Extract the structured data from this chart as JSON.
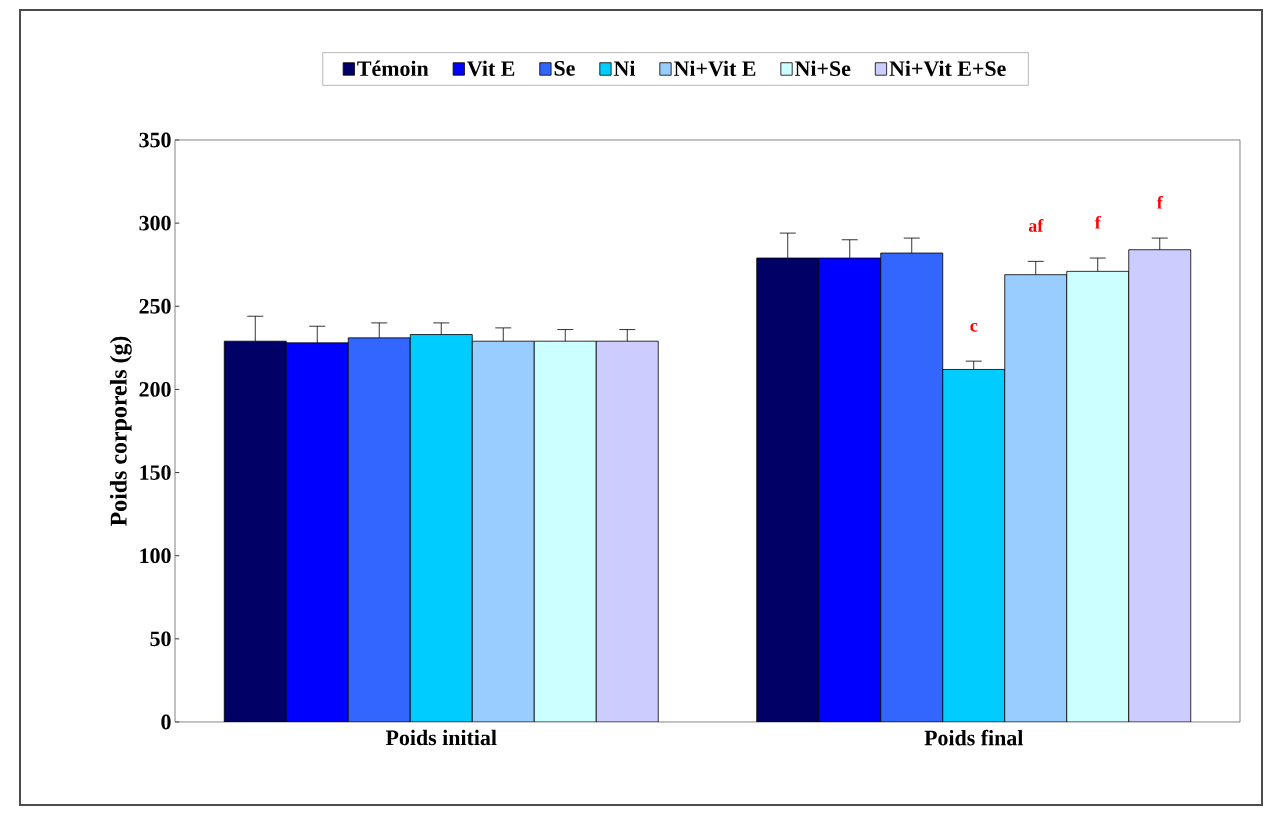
{
  "chart_data": {
    "type": "bar",
    "ylabel": "Poids corporels (g)",
    "categories": [
      "Poids initial",
      "Poids final"
    ],
    "ylim": [
      0,
      350
    ],
    "yticks": [
      0,
      50,
      100,
      150,
      200,
      250,
      300,
      350
    ],
    "grid": false,
    "legend": "top",
    "series": [
      {
        "name": "Témoin",
        "color": "#000066",
        "values": [
          229,
          279
        ],
        "errors": [
          15,
          15
        ]
      },
      {
        "name": "Vit E",
        "color": "#0000ff",
        "values": [
          228,
          279
        ],
        "errors": [
          10,
          11
        ]
      },
      {
        "name": "Se",
        "color": "#3366ff",
        "values": [
          231,
          282
        ],
        "errors": [
          9,
          9
        ]
      },
      {
        "name": "Ni",
        "color": "#00ccff",
        "values": [
          233,
          212
        ],
        "errors": [
          7,
          5
        ],
        "value_labels": [
          null,
          "c"
        ]
      },
      {
        "name": "Ni+Vit E",
        "color": "#99ccff",
        "values": [
          229,
          269
        ],
        "errors": [
          8,
          8
        ],
        "value_labels": [
          null,
          "af"
        ]
      },
      {
        "name": "Ni+Se",
        "color": "#ccffff",
        "values": [
          229,
          271
        ],
        "errors": [
          7,
          8
        ],
        "value_labels": [
          null,
          "f"
        ]
      },
      {
        "name": "Ni+Vit E+Se",
        "color": "#ccccff",
        "values": [
          229,
          284
        ],
        "errors": [
          7,
          7
        ],
        "value_labels": [
          null,
          "f"
        ]
      }
    ]
  }
}
